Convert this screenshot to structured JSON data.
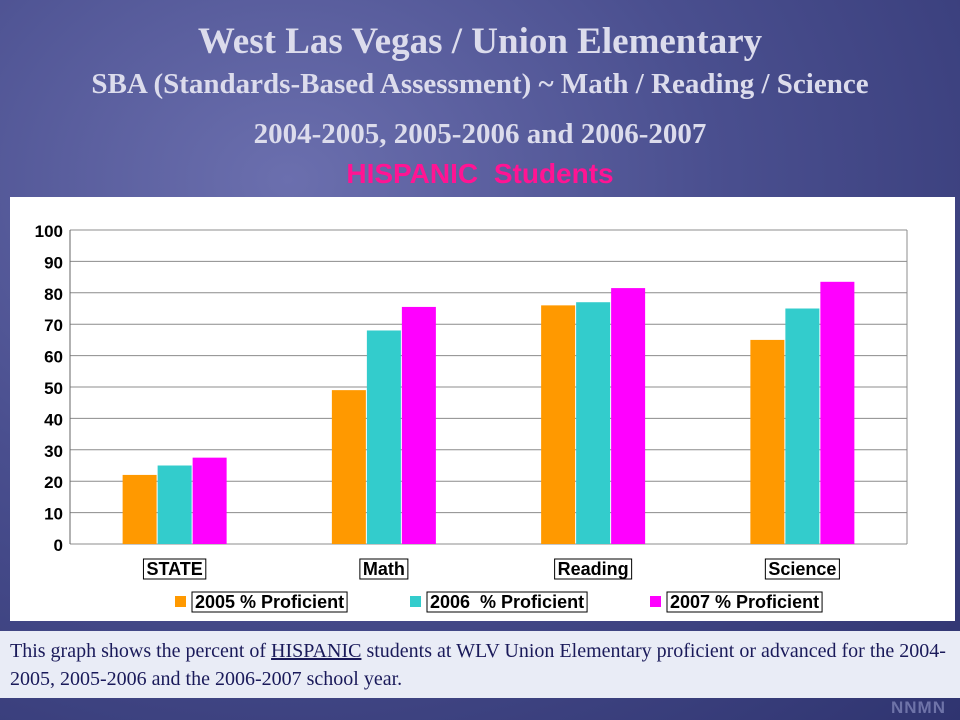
{
  "title": {
    "line1": "West Las Vegas / Union Elementary",
    "line2": "SBA (Standards-Based Assessment) ~ Math / Reading / Science",
    "line3": "2004-2005, 2005-2006 and 2006-2007",
    "line4": "HISPANIC Students"
  },
  "caption": {
    "part1": "This graph shows the percent of ",
    "highlight": "HISPANIC",
    "part2": " students at WLV Union Elementary proficient or advanced for the 2004-2005, 2005-2006 and the 2006-2007 school year."
  },
  "logo": "NNMN",
  "chart_data": {
    "type": "bar",
    "categories": [
      "STATE",
      "Math",
      "Reading",
      "Science"
    ],
    "series": [
      {
        "name": "2005 % Proficient",
        "color": "#ff9900",
        "values": [
          22,
          49,
          76,
          65
        ]
      },
      {
        "name": "2006  % Proficient",
        "color": "#33cccc",
        "values": [
          25,
          68,
          77,
          75
        ]
      },
      {
        "name": "2007 % Proficient",
        "color": "#ff00ff",
        "values": [
          27.5,
          75.5,
          81.5,
          83.5
        ]
      }
    ],
    "yticks": [
      "0",
      "10",
      "20",
      "30",
      "40",
      "50",
      "60",
      "70",
      "80",
      "90",
      "100"
    ],
    "ylim": [
      0,
      100
    ],
    "grid": true,
    "legend": "bottom"
  }
}
